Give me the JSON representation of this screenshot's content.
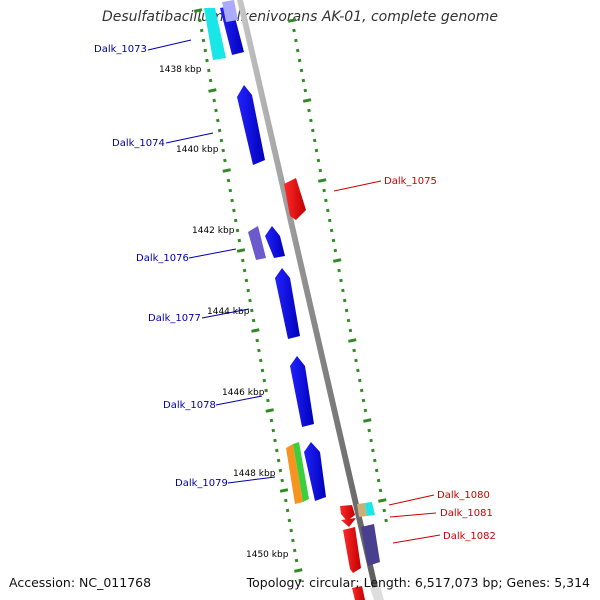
{
  "title": "Desulfatibacillum alkenivorans AK-01, complete genome",
  "footer": {
    "accession": "Accession: NC_011768",
    "summary": "Topology: circular; Length: 6,517,073 bp; Genes: 5,314"
  },
  "colors": {
    "blue": "#0000e6",
    "red": "#e80000",
    "purple": "#6a5acd",
    "cyan": "#19e6e6",
    "orange": "#f7941d",
    "green": "#3ccf3c",
    "tan": "#c8b078",
    "plum": "#4a3f8f",
    "lavender": "#aaaaff",
    "tick": "#2e8b22",
    "backbone": "#9a9a9a",
    "label_blue": "#0000aa",
    "label_red": "#cc0000"
  },
  "scale_labels": [
    "1438 kbp",
    "1440 kbp",
    "1442 kbp",
    "1444 kbp",
    "1446 kbp",
    "1448 kbp",
    "1450 kbp"
  ],
  "genes": [
    {
      "name": "Dalk_1073",
      "strand": "reverse"
    },
    {
      "name": "Dalk_1074",
      "strand": "reverse"
    },
    {
      "name": "Dalk_1075",
      "strand": "forward"
    },
    {
      "name": "Dalk_1076",
      "strand": "reverse"
    },
    {
      "name": "Dalk_1077",
      "strand": "reverse"
    },
    {
      "name": "Dalk_1078",
      "strand": "reverse"
    },
    {
      "name": "Dalk_1079",
      "strand": "reverse"
    },
    {
      "name": "Dalk_1080",
      "strand": "forward"
    },
    {
      "name": "Dalk_1081",
      "strand": "forward"
    },
    {
      "name": "Dalk_1082",
      "strand": "forward"
    }
  ]
}
